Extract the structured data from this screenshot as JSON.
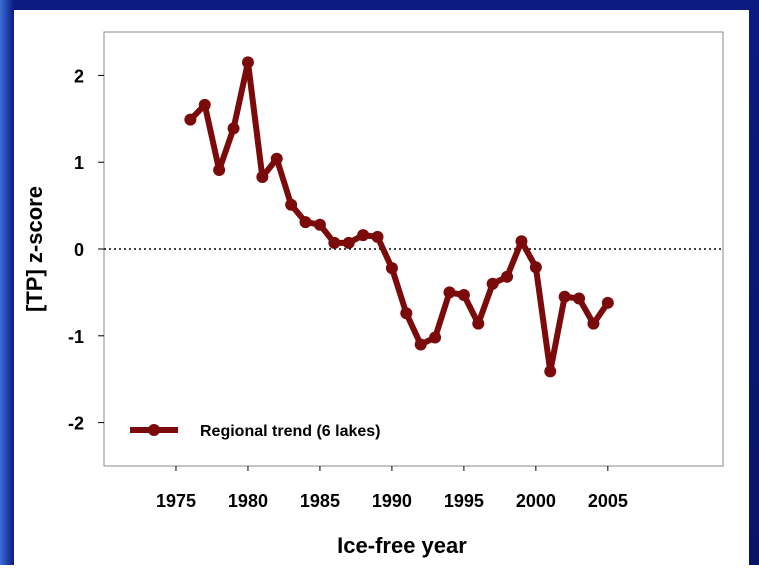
{
  "chart_data": {
    "type": "line",
    "x": [
      1976,
      1977,
      1978,
      1979,
      1980,
      1981,
      1982,
      1983,
      1984,
      1985,
      1986,
      1987,
      1988,
      1989,
      1990,
      1991,
      1992,
      1993,
      1994,
      1995,
      1996,
      1997,
      1998,
      1999,
      2000,
      2001,
      2002,
      2003,
      2004,
      2005
    ],
    "series": [
      {
        "name": "Regional trend (6 lakes)",
        "color": "#7b0a0a",
        "values": [
          1.49,
          1.66,
          0.91,
          1.39,
          2.15,
          0.83,
          1.04,
          0.51,
          0.31,
          0.28,
          0.07,
          0.07,
          0.16,
          0.14,
          -0.22,
          -0.74,
          -1.1,
          -1.02,
          -0.5,
          -0.53,
          -0.86,
          -0.4,
          -0.32,
          0.09,
          -0.21,
          -1.41,
          -0.55,
          -0.57,
          -0.86,
          -0.62
        ]
      }
    ],
    "x_label": "Ice-free year",
    "y_label": "[TP] z-score",
    "xlim": [
      1970,
      2013
    ],
    "xticks": [
      1975,
      1980,
      1985,
      1990,
      1995,
      2000,
      2005
    ],
    "ylim": [
      -2.5,
      2.5
    ],
    "yticks": [
      -2,
      -1,
      0,
      1,
      2
    ],
    "reference_line": 0,
    "legend": "lower left"
  }
}
